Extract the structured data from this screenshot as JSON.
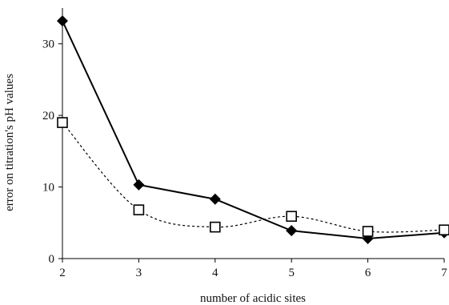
{
  "chart_data": {
    "type": "line",
    "title": "",
    "xlabel": "number of acidic sites",
    "ylabel": "error on titration's pH values",
    "x": [
      2,
      3,
      4,
      5,
      6,
      7
    ],
    "xlim": [
      2,
      7
    ],
    "ylim": [
      0,
      35
    ],
    "xticks": [
      "2",
      "3",
      "4",
      "5",
      "6",
      "7"
    ],
    "yticks": [
      "0",
      "10",
      "20",
      "30"
    ],
    "grid": false,
    "legend": "none",
    "series": [
      {
        "values": [
          33.2,
          10.3,
          8.3,
          3.9,
          2.8,
          3.6
        ],
        "style": "solid",
        "marker": "filled-diamond",
        "color": "#000000"
      },
      {
        "values": [
          19.0,
          6.8,
          4.4,
          5.9,
          3.8,
          4.0
        ],
        "style": "dashed",
        "marker": "open-square",
        "color": "#000000"
      }
    ]
  }
}
